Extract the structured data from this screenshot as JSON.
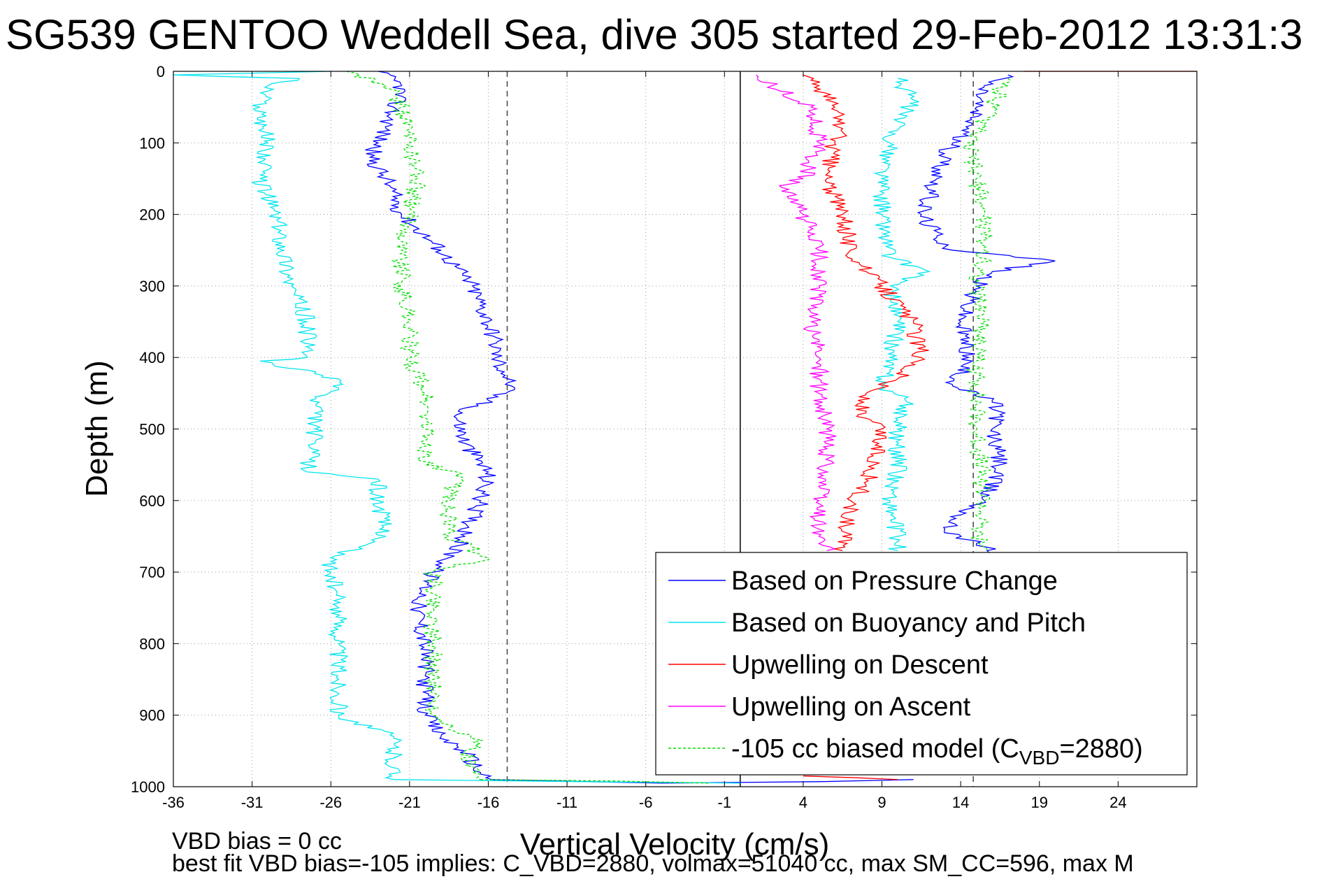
{
  "chart_data": {
    "type": "line",
    "title": "SG539 GENTOO Weddell Sea, dive 305 started 29-Feb-2012 13:31:3",
    "xlabel": "Vertical Velocity (cm/s)",
    "ylabel": "Depth (m)",
    "xlim": [
      -36,
      29
    ],
    "ylim": [
      1000,
      0
    ],
    "y_reversed": true,
    "grid": true,
    "grid_style": "dotted",
    "xticks": [
      -36,
      -31,
      -26,
      -21,
      -16,
      -11,
      -6,
      -1,
      4,
      9,
      14,
      19,
      24
    ],
    "yticks": [
      0,
      100,
      200,
      300,
      400,
      500,
      600,
      700,
      800,
      900,
      1000
    ],
    "reference_lines": [
      {
        "x": -14.8,
        "style": "dashed",
        "color": "#444444"
      },
      {
        "x": 0,
        "style": "solid",
        "color": "#000000"
      },
      {
        "x": 14.8,
        "style": "dashed",
        "color": "#444444"
      }
    ],
    "legend_position": "bottom-right",
    "series": [
      {
        "name": "Based on Pressure Change",
        "color": "#0000ff",
        "style": "solid",
        "segments": [
          {
            "y": [
              0,
              20,
              50,
              80,
              100,
              120,
              150,
              200,
              250,
              300,
              350,
              380,
              400,
              420,
              440,
              460,
              480,
              520,
              560,
              600,
              650,
              680,
              700,
              750,
              800,
              850,
              900,
              930,
              950,
              980,
              990
            ],
            "x": [
              -23,
              -21.5,
              -22,
              -22.5,
              -23,
              -23.5,
              -22.5,
              -21.5,
              -19,
              -17,
              -16,
              -15.5,
              -15.5,
              -15,
              -14.5,
              -16,
              -18,
              -17.5,
              -16,
              -16.5,
              -17.5,
              -18.5,
              -19.5,
              -20.5,
              -20,
              -20,
              -20,
              -19,
              -17.5,
              -16.5,
              -15.8
            ]
          },
          {
            "y": [
              990,
              995,
              993,
              990
            ],
            "x": [
              -15.8,
              -5,
              5,
              11
            ]
          },
          {
            "y": [
              5,
              20,
              50,
              80,
              100,
              120,
              150,
              200,
              230,
              250,
              265,
              280,
              300,
              350,
              400,
              440,
              460,
              480,
              500,
              550,
              600,
              620,
              640,
              660,
              680
            ],
            "x": [
              17,
              15.5,
              15,
              14.5,
              13.5,
              13,
              12.5,
              11.5,
              12.5,
              13.5,
              20,
              16,
              15,
              14,
              14.5,
              13.5,
              16,
              16.5,
              16,
              16.5,
              15.5,
              14,
              13,
              15,
              17
            ]
          }
        ]
      },
      {
        "name": "Based on Buoyancy and Pitch",
        "color": "#00e5ee",
        "style": "solid",
        "segments": [
          {
            "y": [
              0,
              5,
              10,
              20,
              50,
              100,
              150,
              200,
              250,
              300,
              350,
              400,
              405,
              430,
              445,
              455,
              500,
              560,
              570,
              600,
              650,
              680,
              700,
              750,
              800,
              850,
              900,
              930,
              960,
              990
            ],
            "x": [
              -26,
              -36,
              -28,
              -30,
              -30.5,
              -30,
              -30.5,
              -29.5,
              -29,
              -28.5,
              -27.5,
              -27.5,
              -30.5,
              -25.5,
              -25.5,
              -27,
              -27,
              -27.5,
              -23,
              -23,
              -22.5,
              -26,
              -26,
              -25.5,
              -25.5,
              -25.5,
              -25.5,
              -22,
              -22,
              -22
            ]
          },
          {
            "y": [
              990,
              993,
              995
            ],
            "x": [
              -22,
              -10,
              0
            ]
          },
          {
            "y": [
              10,
              40,
              70,
              100,
              150,
              200,
              260,
              280,
              300,
              350,
              400,
              440,
              460,
              500,
              560,
              600,
              650,
              670
            ],
            "x": [
              10,
              11,
              10,
              9.5,
              9,
              9,
              9.5,
              12,
              9.5,
              10,
              9.5,
              9,
              10.5,
              10,
              10,
              9.5,
              10,
              10
            ]
          }
        ]
      },
      {
        "name": "Upwelling on Descent",
        "color": "#ff0000",
        "style": "solid",
        "segments": [
          {
            "y": [
              5,
              20,
              50,
              80,
              100,
              150,
              200,
              250,
              280,
              300,
              350,
              400,
              430,
              450,
              480,
              500,
              550,
              580,
              600,
              650,
              670
            ],
            "x": [
              4,
              5,
              6,
              6.5,
              6,
              5.5,
              6.5,
              7,
              8,
              9,
              11,
              11.5,
              10,
              8,
              7.5,
              9,
              8.5,
              8,
              7,
              6.5,
              6.5
            ]
          },
          {
            "y": [
              0,
              0
            ],
            "x": [
              18,
              29
            ]
          },
          {
            "y": [
              985,
              990
            ],
            "x": [
              4,
              10
            ]
          }
        ]
      },
      {
        "name": "Upwelling on Ascent",
        "color": "#ff00ff",
        "style": "solid",
        "segments": [
          {
            "y": [
              5,
              20,
              50,
              100,
              150,
              160,
              200,
              250,
              300,
              350,
              400,
              450,
              500,
              550,
              600,
              650,
              670
            ],
            "x": [
              1,
              2,
              4.5,
              5,
              4,
              2.5,
              4,
              5,
              5,
              4.5,
              5,
              5,
              5.5,
              5.5,
              5,
              5,
              5.5
            ]
          }
        ]
      },
      {
        "name": "-105 cc biased model (C_VBD=2880)",
        "color": "#00dd00",
        "style": "dashed",
        "segments": [
          {
            "y": [
              0,
              20,
              50,
              100,
              150,
              200,
              250,
              300,
              350,
              400,
              450,
              500,
              550,
              560,
              600,
              650,
              680,
              700,
              750,
              800,
              850,
              900,
              940,
              950,
              980,
              990
            ],
            "x": [
              -25,
              -22.5,
              -21.5,
              -21,
              -20.5,
              -21,
              -21.5,
              -21.5,
              -21,
              -21,
              -20,
              -20,
              -20,
              -18,
              -18.5,
              -18.5,
              -16,
              -19.5,
              -19.5,
              -19.5,
              -19.5,
              -19.5,
              -16.5,
              -17.5,
              -17,
              -16.5
            ]
          },
          {
            "y": [
              990,
              992,
              995
            ],
            "x": [
              -16.5,
              -8,
              -2
            ]
          },
          {
            "y": [
              10,
              50,
              100,
              150,
              200,
              250,
              300,
              350,
              400,
              500,
              600,
              650,
              680
            ],
            "x": [
              17,
              16,
              14.5,
              15,
              15.5,
              15.5,
              15,
              15.5,
              15,
              15,
              15.5,
              15,
              16
            ]
          }
        ]
      }
    ],
    "legend": [
      {
        "label": "Based on Pressure Change",
        "color": "#0000ff",
        "style": "solid"
      },
      {
        "label": "Based on Buoyancy and Pitch",
        "color": "#00e5ee",
        "style": "solid"
      },
      {
        "label": "Upwelling on Descent",
        "color": "#ff0000",
        "style": "solid"
      },
      {
        "label": "Upwelling on Ascent",
        "color": "#ff00ff",
        "style": "solid"
      },
      {
        "label_main": "-105 cc biased model (C",
        "label_sub": "VBD",
        "label_end": "=2880)",
        "color": "#00dd00",
        "style": "dashed"
      }
    ],
    "annotations": {
      "line1": "VBD bias = 0 cc",
      "line2": "best fit VBD bias=-105 implies: C_VBD=2880, volmax=51040 cc, max SM_CC=596, max M"
    }
  }
}
